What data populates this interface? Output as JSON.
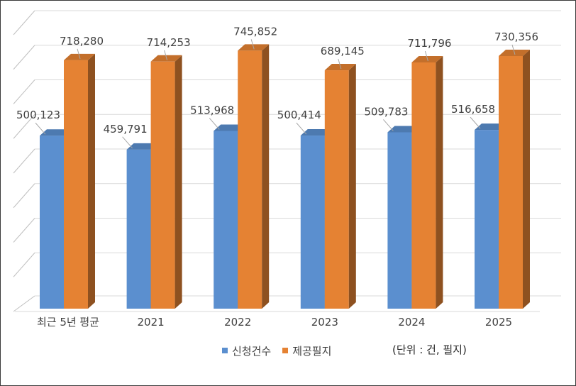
{
  "chart_data": {
    "type": "bar",
    "style": "3d-clustered-column",
    "categories": [
      "최근 5년 평균",
      "2021",
      "2022",
      "2023",
      "2024",
      "2025"
    ],
    "series": [
      {
        "name": "신청건수",
        "color": "#5B8FCF",
        "values": [
          500123,
          459791,
          513968,
          500414,
          509783,
          516658
        ],
        "labels": [
          "500,123",
          "459,791",
          "513,968",
          "500,414",
          "509,783",
          "516,658"
        ]
      },
      {
        "name": "제공필지",
        "color": "#E58233",
        "values": [
          718280,
          714253,
          745852,
          689145,
          711796,
          730356
        ],
        "labels": [
          "718,280",
          "714,253",
          "745,852",
          "689,145",
          "711,796",
          "730,356"
        ]
      }
    ],
    "ylim": [
      0,
      800000
    ],
    "gridlines": true,
    "axis_tick_labels_shown": false,
    "legend_position": "bottom",
    "unit_note": "(단위 : 건, 필지)"
  }
}
